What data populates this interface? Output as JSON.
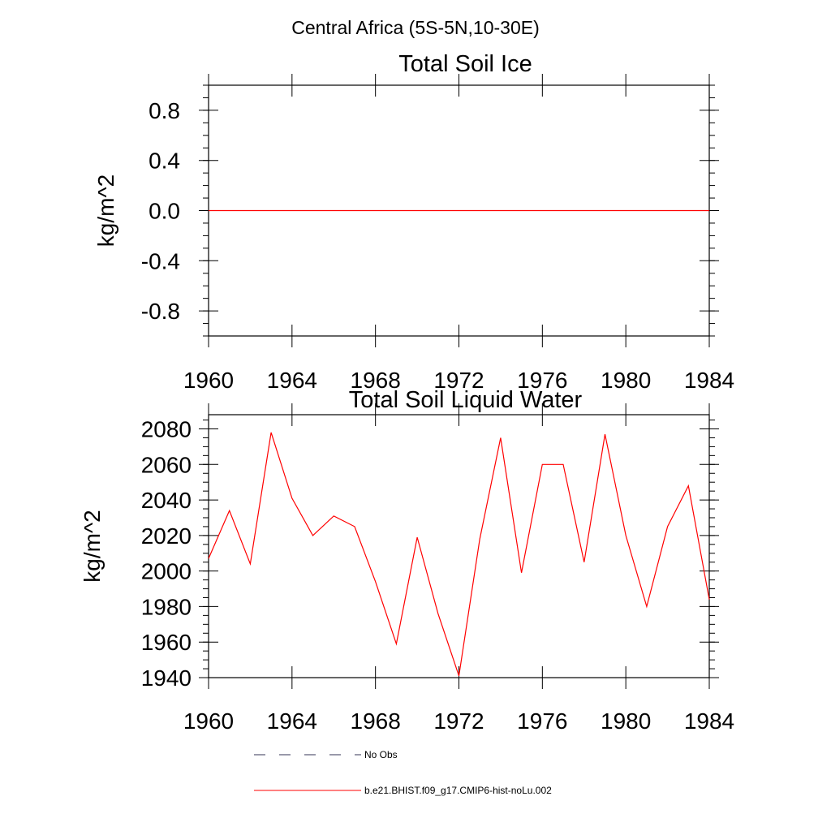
{
  "figure": {
    "suptitle": "Central Africa (5S-5N,10-30E)"
  },
  "chart_data": [
    {
      "type": "line",
      "title": "Total Soil Ice",
      "xlabel": "",
      "ylabel": "kg/m^2",
      "xlim": [
        1960,
        1984
      ],
      "ylim": [
        -1.0,
        1.0
      ],
      "xticks": [
        1960,
        1964,
        1968,
        1972,
        1976,
        1980,
        1984
      ],
      "xtick_labels": [
        "1960",
        "1964",
        "1968",
        "1972",
        "1976",
        "1980",
        "1984"
      ],
      "yticks": [
        0.8,
        0.4,
        0.0,
        -0.4,
        -0.8
      ],
      "ytick_labels": [
        "0.8",
        "0.4",
        "0.0",
        "-0.4",
        "-0.8"
      ],
      "series": [
        {
          "name": "b.e21.BHIST.f09_g17.CMIP6-hist-noLu.002",
          "color": "#ff0000",
          "x": [
            1960,
            1961,
            1962,
            1963,
            1964,
            1965,
            1966,
            1967,
            1968,
            1969,
            1970,
            1971,
            1972,
            1973,
            1974,
            1975,
            1976,
            1977,
            1978,
            1979,
            1980,
            1981,
            1982,
            1983,
            1984
          ],
          "values": [
            0,
            0,
            0,
            0,
            0,
            0,
            0,
            0,
            0,
            0,
            0,
            0,
            0,
            0,
            0,
            0,
            0,
            0,
            0,
            0,
            0,
            0,
            0,
            0,
            0
          ]
        }
      ]
    },
    {
      "type": "line",
      "title": "Total Soil Liquid Water",
      "xlabel": "",
      "ylabel": "kg/m^2",
      "xlim": [
        1960,
        1984
      ],
      "ylim": [
        1940,
        2088
      ],
      "xticks": [
        1960,
        1964,
        1968,
        1972,
        1976,
        1980,
        1984
      ],
      "xtick_labels": [
        "1960",
        "1964",
        "1968",
        "1972",
        "1976",
        "1980",
        "1984"
      ],
      "yticks": [
        2080,
        2060,
        2040,
        2020,
        2000,
        1980,
        1960,
        1940
      ],
      "ytick_labels": [
        "2080",
        "2060",
        "2040",
        "2020",
        "2000",
        "1980",
        "1960",
        "1940"
      ],
      "series": [
        {
          "name": "b.e21.BHIST.f09_g17.CMIP6-hist-noLu.002",
          "color": "#ff0000",
          "x": [
            1960,
            1961,
            1962,
            1963,
            1964,
            1965,
            1966,
            1967,
            1968,
            1969,
            1970,
            1971,
            1972,
            1973,
            1974,
            1975,
            1976,
            1977,
            1978,
            1979,
            1980,
            1981,
            1982,
            1983,
            1984
          ],
          "values": [
            2007,
            2034,
            2004,
            2078,
            2041,
            2020,
            2031,
            2025,
            1994,
            1959,
            2019,
            1976,
            1941,
            2018,
            2075,
            1999,
            2060,
            2060,
            2005,
            2077,
            2020,
            1980,
            2025,
            2048,
            1984
          ]
        }
      ]
    }
  ],
  "legend": {
    "items": [
      {
        "label": "No Obs",
        "style": "dashed",
        "color": "#333355"
      },
      {
        "label": "b.e21.BHIST.f09_g17.CMIP6-hist-noLu.002",
        "style": "solid",
        "color": "#ff0000"
      }
    ]
  }
}
